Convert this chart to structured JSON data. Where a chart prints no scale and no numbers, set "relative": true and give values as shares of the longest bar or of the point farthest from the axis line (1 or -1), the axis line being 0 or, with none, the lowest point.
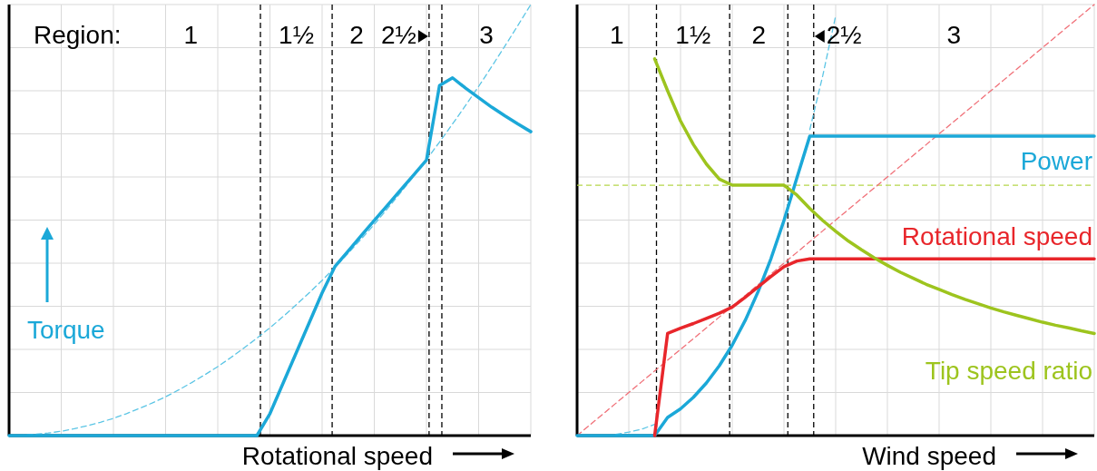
{
  "chart_data": [
    {
      "type": "line",
      "relative": true,
      "grid": true,
      "xlabel": "Rotational speed",
      "ylabel": "Torque",
      "annotations": [
        "Region:",
        "1",
        "1½",
        "2",
        "2½",
        "3"
      ],
      "categories": [
        null,
        null,
        null,
        null,
        null,
        null,
        null,
        null,
        null,
        null,
        null,
        null,
        null,
        null,
        null,
        null,
        null,
        null,
        null,
        null,
        null,
        null,
        null,
        null,
        null,
        null,
        null,
        null,
        null,
        null,
        null,
        null,
        null,
        null,
        null,
        null,
        null,
        null,
        null,
        null,
        null
      ],
      "series": [
        {
          "color": "#1ba8d8",
          "line_style": "solid",
          "values": [
            0,
            0,
            0,
            0,
            0,
            0,
            0,
            0,
            0,
            0,
            0,
            0,
            0,
            0,
            0,
            0,
            0,
            0,
            0,
            0,
            0.051,
            0.121,
            0.191,
            0.261,
            0.331,
            0.393,
            0.428,
            0.464,
            0.499,
            0.534,
            0.569,
            0.604,
            0.639,
            0.812,
            0.83,
            0.806,
            0.784,
            0.762,
            0.742,
            0.723,
            0.705
          ]
        },
        {
          "color": "#5bc5e5",
          "line_style": "dashed",
          "values": [
            0,
            0.001,
            0.003,
            0.006,
            0.01,
            0.016,
            0.023,
            0.031,
            0.04,
            0.051,
            0.063,
            0.076,
            0.09,
            0.106,
            0.123,
            0.141,
            0.16,
            0.181,
            0.203,
            0.226,
            0.25,
            0.276,
            0.303,
            0.331,
            0.36,
            0.391,
            0.423,
            0.456,
            0.49,
            0.526,
            0.563,
            0.601,
            0.64,
            0.681,
            0.723,
            0.766,
            0.81,
            0.856,
            0.903,
            0.951,
            1
          ]
        }
      ]
    },
    {
      "type": "line",
      "relative": true,
      "grid": true,
      "xlabel": "Wind speed",
      "annotations": [
        "1",
        "1½",
        "2",
        "2½",
        "3"
      ],
      "categories": [
        null,
        null,
        null,
        null,
        null,
        null,
        null,
        null,
        null,
        null,
        null,
        null,
        null,
        null,
        null,
        null,
        null,
        null,
        null,
        null,
        null,
        null,
        null,
        null,
        null,
        null,
        null,
        null,
        null,
        null,
        null,
        null,
        null,
        null,
        null,
        null,
        null,
        null,
        null,
        null,
        null
      ],
      "series": [
        {
          "name": "Power",
          "color": "#1ba8d8",
          "line_style": "solid",
          "values": [
            0,
            0,
            0,
            0,
            0,
            0,
            0,
            0.042,
            0.062,
            0.089,
            0.122,
            0.162,
            0.21,
            0.267,
            0.334,
            0.411,
            0.499,
            0.598,
            0.695,
            0.695,
            0.695,
            0.695,
            0.695,
            0.695,
            0.695,
            0.695,
            0.695,
            0.695,
            0.695,
            0.695,
            0.695,
            0.695,
            0.695,
            0.695,
            0.695,
            0.695,
            0.695,
            0.695,
            0.695,
            0.695,
            0.695
          ]
        },
        {
          "name": "Rotational speed",
          "color": "#e8262b",
          "line_style": "solid",
          "values": [
            null,
            null,
            null,
            null,
            null,
            null,
            0,
            0.237,
            0.249,
            0.26,
            0.272,
            0.284,
            0.298,
            0.321,
            0.345,
            0.369,
            0.392,
            0.405,
            0.41,
            0.41,
            0.41,
            0.41,
            0.41,
            0.41,
            0.41,
            0.41,
            0.41,
            0.41,
            0.41,
            0.41,
            0.41,
            0.41,
            0.41,
            0.41,
            0.41,
            0.41,
            0.41,
            0.41,
            0.41,
            0.41,
            0.41
          ]
        },
        {
          "name": "Tip speed ratio",
          "color": "#9dc41e",
          "line_style": "solid",
          "values": [
            null,
            null,
            null,
            null,
            null,
            null,
            0.874,
            0.8,
            0.73,
            0.675,
            0.63,
            0.595,
            0.581,
            0.581,
            0.581,
            0.581,
            0.581,
            0.558,
            0.527,
            0.499,
            0.474,
            0.451,
            0.431,
            0.412,
            0.395,
            0.379,
            0.365,
            0.351,
            0.339,
            0.327,
            0.316,
            0.306,
            0.296,
            0.287,
            0.279,
            0.271,
            0.263,
            0.256,
            0.25,
            0.243,
            0.237
          ]
        },
        {
          "color": "#5bc5e5",
          "line_style": "dashed",
          "values": [
            null,
            null,
            null,
            0.003,
            0.008,
            0.015,
            0.026,
            null,
            null,
            null,
            null,
            null,
            null,
            null,
            null,
            null,
            null,
            null,
            0.71,
            0.835,
            0.974,
            null,
            null,
            null,
            null,
            null,
            null,
            null,
            null,
            null,
            null,
            null,
            null,
            null,
            null,
            null,
            null,
            null,
            null,
            null,
            null
          ]
        },
        {
          "color": "#f07078",
          "line_style": "dashed",
          "values": [
            0,
            0.025,
            0.05,
            0.075,
            0.1,
            0.125,
            0.15,
            0.175,
            0.2,
            0.225,
            0.25,
            0.275,
            0.3,
            0.325,
            0.35,
            0.375,
            0.4,
            0.425,
            0.45,
            0.475,
            0.5,
            0.525,
            0.55,
            0.575,
            0.6,
            0.625,
            0.65,
            0.675,
            0.7,
            0.725,
            0.75,
            0.775,
            0.8,
            0.825,
            0.85,
            0.875,
            0.9,
            0.925,
            0.95,
            0.975,
            1
          ]
        }
      ],
      "ref_lines": [
        {
          "axis": "y",
          "value": 0.581,
          "color": "#b5d64a",
          "line_style": "dashed"
        }
      ]
    }
  ]
}
